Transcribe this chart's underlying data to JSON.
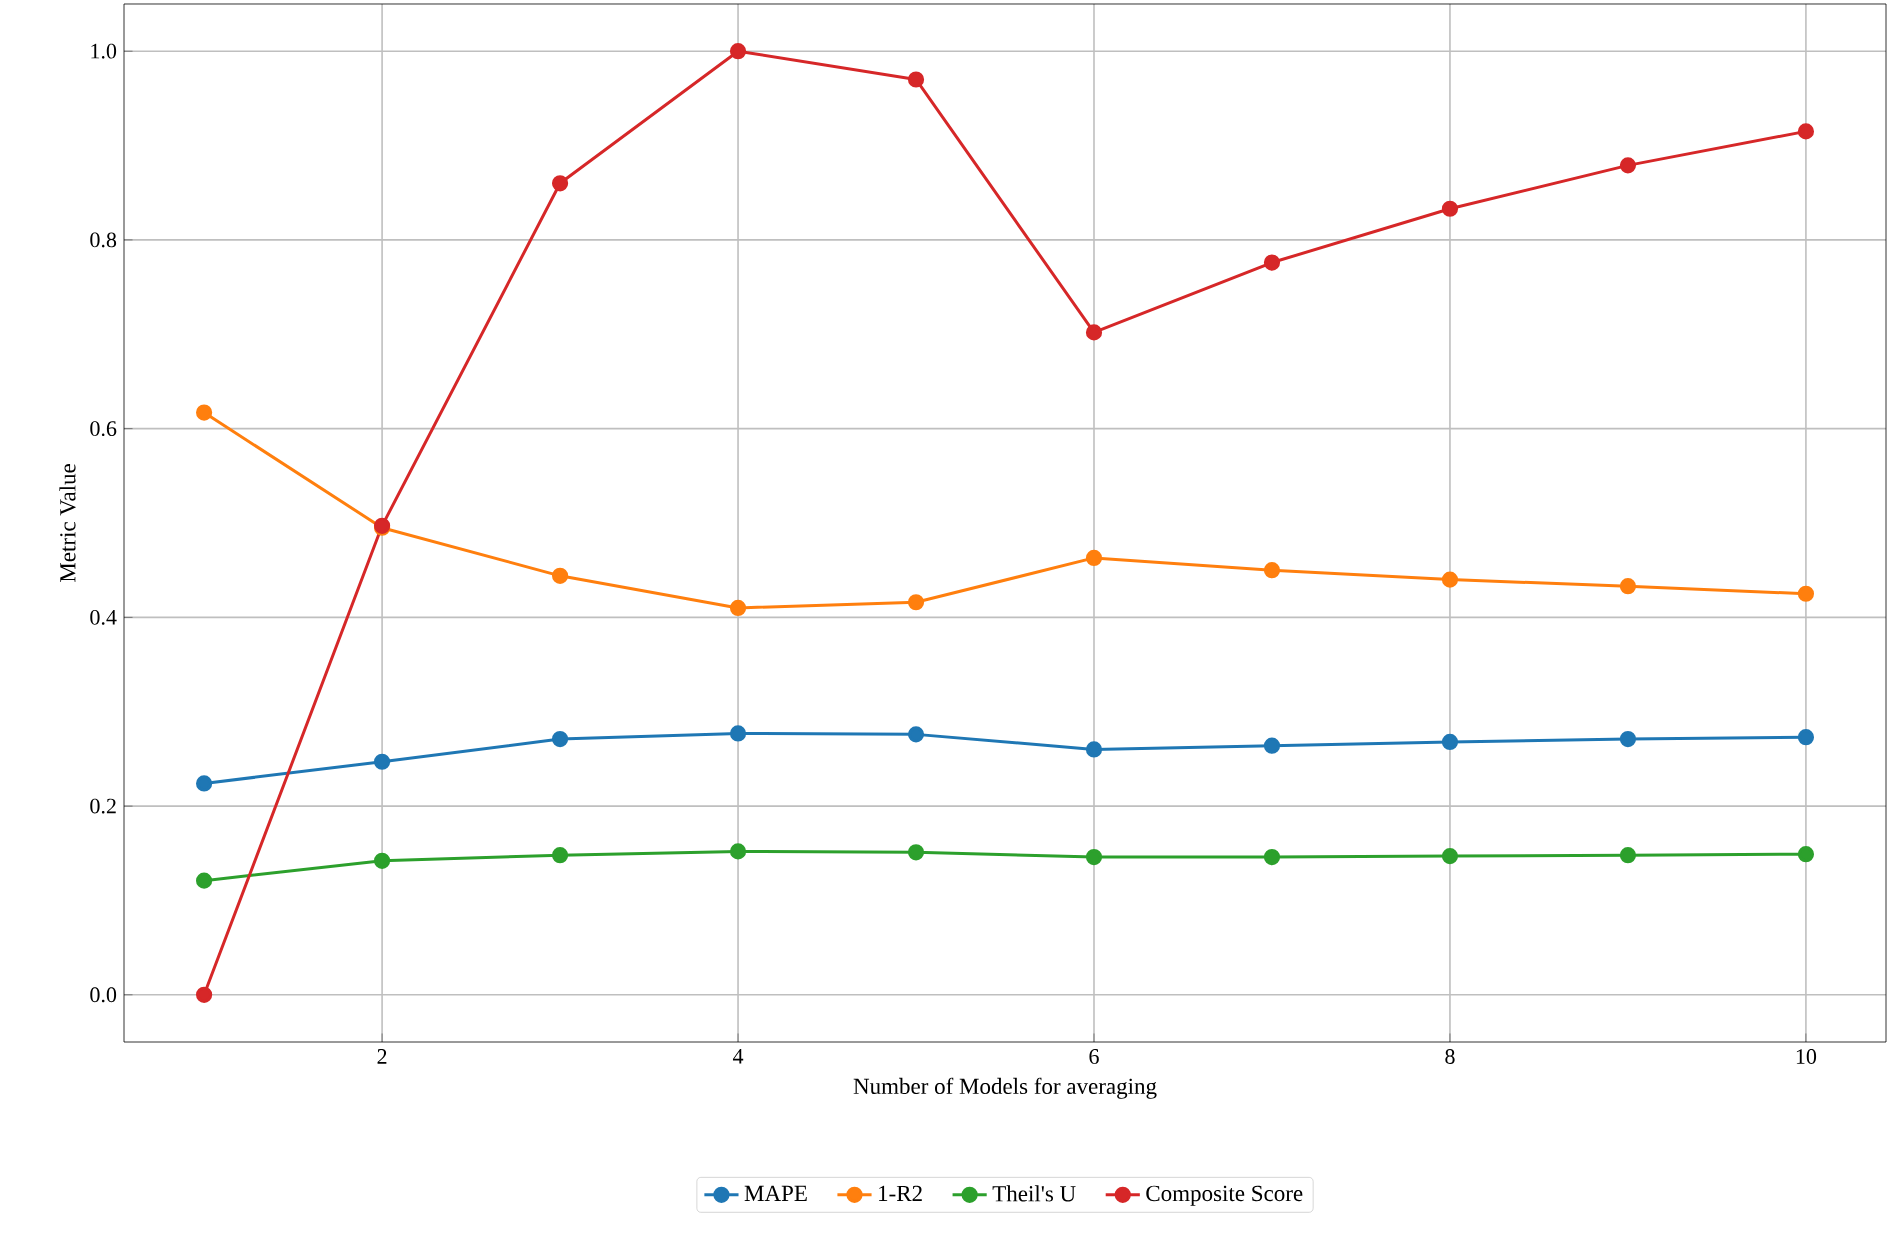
{
  "chart_data": {
    "type": "line",
    "xlabel": "Number of Models for averaging",
    "ylabel": "Metric Value",
    "x": [
      1,
      2,
      3,
      4,
      5,
      6,
      7,
      8,
      9,
      10
    ],
    "series": [
      {
        "name": "MAPE",
        "color": "#1f77b4",
        "values": [
          0.224,
          0.247,
          0.271,
          0.277,
          0.276,
          0.26,
          0.264,
          0.268,
          0.271,
          0.273
        ]
      },
      {
        "name": "1-R2",
        "color": "#ff7f0e",
        "values": [
          0.617,
          0.495,
          0.444,
          0.41,
          0.416,
          0.463,
          0.45,
          0.44,
          0.433,
          0.425
        ]
      },
      {
        "name": "Theil's U",
        "color": "#2ca02c",
        "values": [
          0.121,
          0.142,
          0.148,
          0.152,
          0.151,
          0.146,
          0.146,
          0.147,
          0.148,
          0.149
        ]
      },
      {
        "name": "Composite Score",
        "color": "#d62728",
        "values": [
          0.0,
          0.497,
          0.86,
          1.0,
          0.97,
          0.702,
          0.776,
          0.833,
          0.879,
          0.915
        ]
      }
    ],
    "xlim": [
      0.55,
      10.45
    ],
    "ylim": [
      -0.05,
      1.05
    ],
    "xticks": [
      2,
      4,
      6,
      8,
      10
    ],
    "yticks": [
      {
        "value": 0,
        "label": "0.0"
      },
      {
        "value": 0.2,
        "label": "0.2"
      },
      {
        "value": 0.4,
        "label": "0.4"
      },
      {
        "value": 0.6,
        "label": "0.6"
      },
      {
        "value": 0.8,
        "label": "0.8"
      },
      {
        "value": 1.0,
        "label": "1.0"
      }
    ],
    "grid": true,
    "legend": "bottom",
    "marker": "circle",
    "line_style": "solid"
  }
}
